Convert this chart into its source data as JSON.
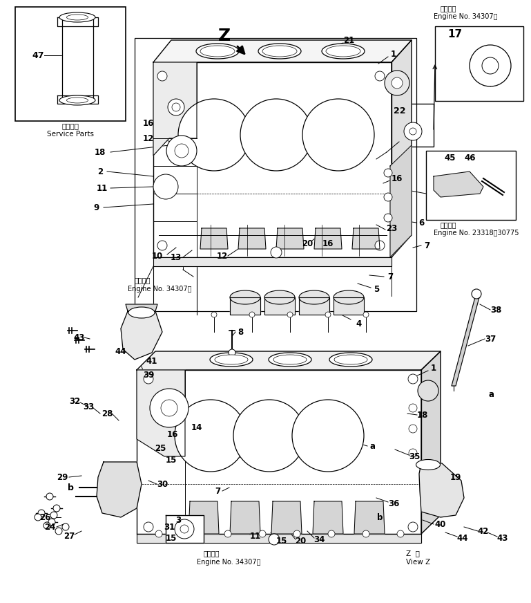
{
  "bg_color": "#ffffff",
  "line_color": "#000000",
  "figsize": [
    7.69,
    8.72
  ],
  "dpi": 100,
  "top_right_text1": "適用号機",
  "top_right_text2": "Engine No. 34307～",
  "mid_right_text1": "適用号機",
  "mid_right_text2": "Engine No. 23318～30775",
  "mid_left_text1": "適用号機",
  "mid_left_text2": "Engine No. 34307～",
  "bot_text1": "適用号機",
  "bot_text2": "Engine No. 34307～",
  "service_text1": "補給専用",
  "service_text2": "Service Parts",
  "view_z1": "Z  視",
  "view_z2": "View Z"
}
